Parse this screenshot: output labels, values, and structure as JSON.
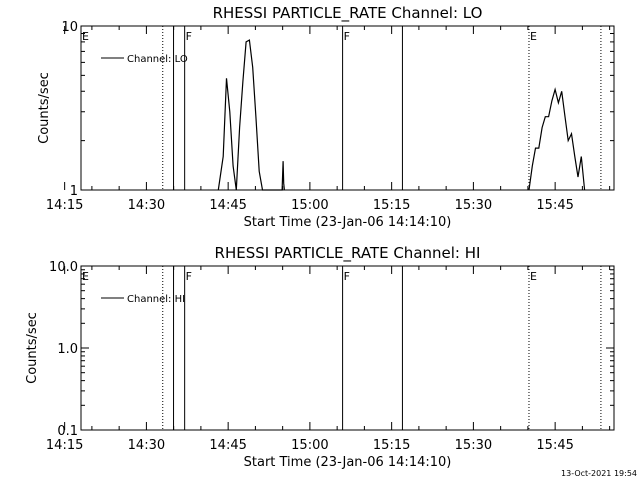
{
  "footer": {
    "timestamp": "13-Oct-2021 19:54"
  },
  "chart_data": [
    {
      "type": "line",
      "title": "RHESSI PARTICLE_RATE Channel: LO",
      "xlabel": "Start Time (23-Jan-06 14:14:10)",
      "ylabel": "Counts/sec",
      "x_range_min": [
        14.3,
        15.93
      ],
      "y_scale": "log",
      "ylim": [
        1,
        10
      ],
      "yticks": [
        1,
        10
      ],
      "ytick_labels": [
        "1",
        "10"
      ],
      "xticks": [
        "14:15",
        "14:30",
        "14:45",
        "15:00",
        "15:15",
        "15:30",
        "15:45"
      ],
      "legend": {
        "placement": "top-left",
        "label": "Channel: LO"
      },
      "flag_lines": [
        {
          "time": 14.55,
          "style": "dotted",
          "label": ""
        },
        {
          "time": 14.583,
          "style": "solid",
          "label": ""
        },
        {
          "time": 14.617,
          "style": "solid",
          "label": "F"
        },
        {
          "time": 15.1,
          "style": "solid",
          "label": "F"
        },
        {
          "time": 15.283,
          "style": "solid",
          "label": ""
        },
        {
          "time": 15.67,
          "style": "dotted",
          "label": "E"
        },
        {
          "time": 15.89,
          "style": "dotted",
          "label": ""
        }
      ],
      "edge_label": "E",
      "series": [
        {
          "values_x": [
            14.72,
            14.735,
            14.745,
            14.755,
            14.765,
            14.775,
            14.785,
            14.795,
            14.805,
            14.815,
            14.825,
            14.835,
            14.845,
            14.855,
            14.865,
            14.875,
            14.885,
            14.895,
            14.905,
            14.915,
            14.918,
            14.92,
            14.922,
            15.67,
            15.68,
            15.69,
            15.7,
            15.71,
            15.72,
            15.73,
            15.74,
            15.75,
            15.76,
            15.77,
            15.78,
            15.79,
            15.8,
            15.81,
            15.82,
            15.83,
            15.84
          ],
          "values_y": [
            1,
            1.6,
            4.8,
            3.0,
            1.4,
            1,
            2.4,
            4.6,
            8.0,
            8.2,
            5.6,
            2.8,
            1.3,
            1,
            1,
            1,
            1,
            1,
            1,
            1,
            1.5,
            1.1,
            1,
            1,
            1.4,
            1.8,
            1.8,
            2.4,
            2.8,
            2.8,
            3.5,
            4.1,
            3.4,
            4.0,
            2.8,
            2.0,
            2.2,
            1.6,
            1.2,
            1.6,
            1
          ]
        }
      ]
    },
    {
      "type": "line",
      "title": "RHESSI PARTICLE_RATE Channel: HI",
      "xlabel": "Start Time (23-Jan-06 14:14:10)",
      "ylabel": "Counts/sec",
      "x_range_min": [
        14.3,
        15.93
      ],
      "y_scale": "log",
      "ylim": [
        0.1,
        10
      ],
      "yticks": [
        0.1,
        1,
        10
      ],
      "ytick_labels": [
        "0.1",
        "1.0",
        "10.0"
      ],
      "xticks": [
        "14:15",
        "14:30",
        "14:45",
        "15:00",
        "15:15",
        "15:30",
        "15:45"
      ],
      "legend": {
        "placement": "top-left",
        "label": "Channel: HI"
      },
      "flag_lines": [
        {
          "time": 14.55,
          "style": "dotted",
          "label": ""
        },
        {
          "time": 14.583,
          "style": "solid",
          "label": ""
        },
        {
          "time": 14.617,
          "style": "solid",
          "label": "F"
        },
        {
          "time": 15.1,
          "style": "solid",
          "label": "F"
        },
        {
          "time": 15.283,
          "style": "solid",
          "label": ""
        },
        {
          "time": 15.67,
          "style": "dotted",
          "label": "E"
        },
        {
          "time": 15.89,
          "style": "dotted",
          "label": ""
        }
      ],
      "edge_label": "E",
      "series": [
        {
          "values_x": [],
          "values_y": []
        }
      ]
    }
  ]
}
